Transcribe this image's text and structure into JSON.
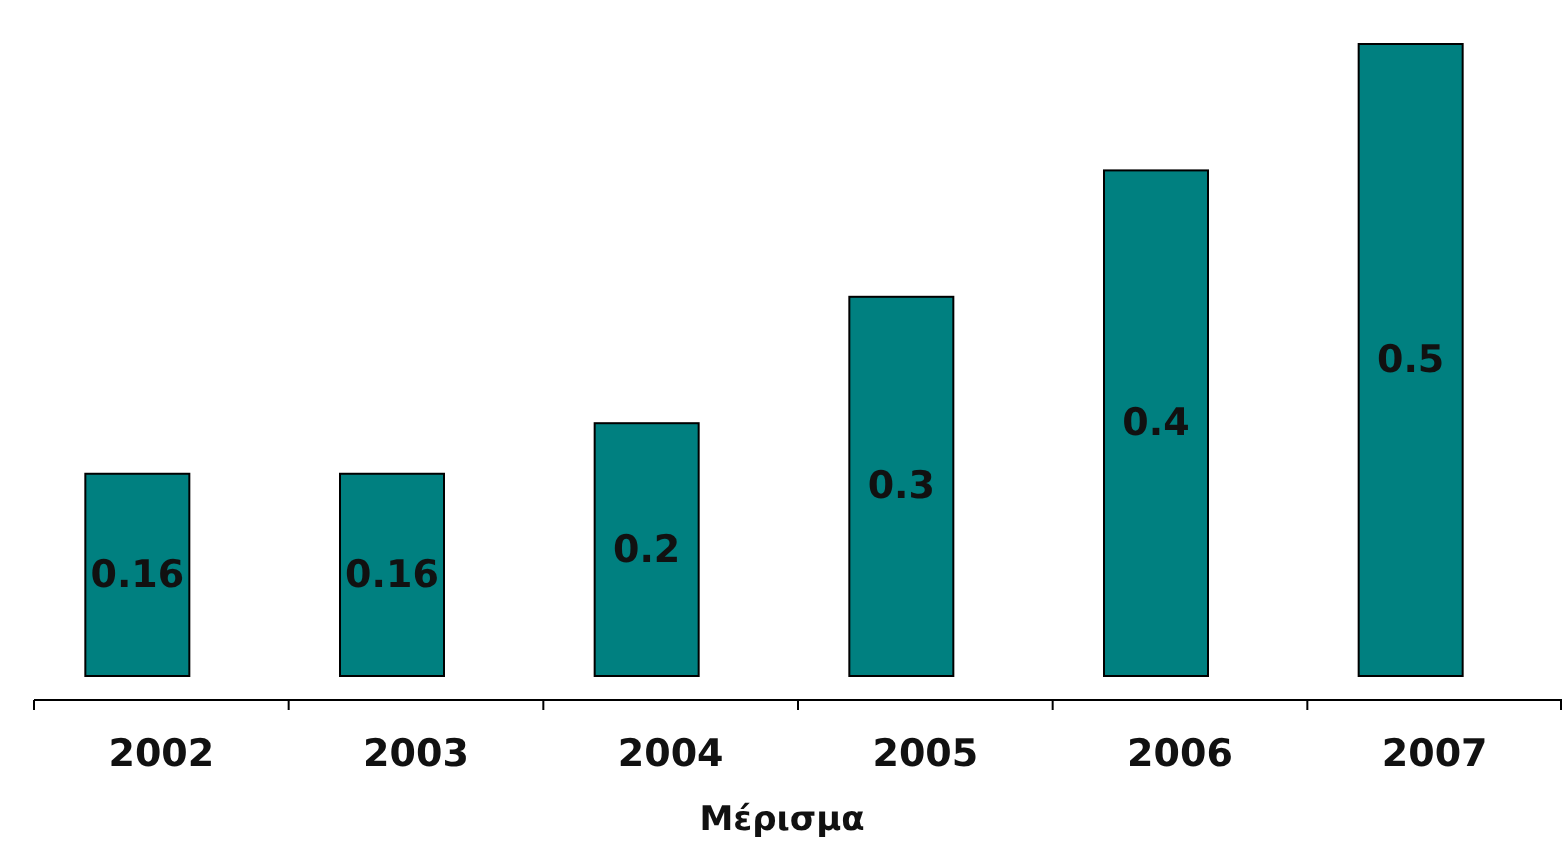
{
  "chart_data": {
    "type": "bar",
    "xlabel": "Μέρισμα",
    "categories": [
      "2002",
      "2003",
      "2004",
      "2005",
      "2006",
      "2007"
    ],
    "values": [
      0.16,
      0.16,
      0.2,
      0.3,
      0.4,
      0.5
    ],
    "color": "#008080",
    "data_labels": true
  }
}
